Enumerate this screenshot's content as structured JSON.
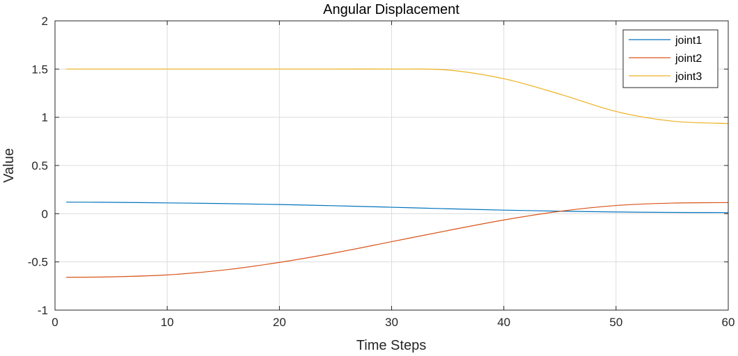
{
  "chart_data": {
    "type": "line",
    "title": "Angular Displacement",
    "xlabel": "Time Steps",
    "ylabel": "Value",
    "xlim": [
      0,
      60
    ],
    "ylim": [
      -1,
      2
    ],
    "xticks": [
      0,
      10,
      20,
      30,
      40,
      50,
      60
    ],
    "xtick_labels": [
      "0",
      "10",
      "20",
      "30",
      "40",
      "50",
      "60"
    ],
    "yticks": [
      -1,
      -0.5,
      0,
      0.5,
      1,
      1.5,
      2
    ],
    "ytick_labels": [
      "-1",
      "-0.5",
      "0",
      "0.5",
      "1",
      "1.5",
      "2"
    ],
    "grid": true,
    "legend_position": "top-right",
    "x": [
      1,
      5,
      10,
      15,
      20,
      25,
      30,
      35,
      40,
      45,
      50,
      55,
      60
    ],
    "series": [
      {
        "name": "joint1",
        "color": "#0072BD",
        "values": [
          0.12,
          0.118,
          0.112,
          0.105,
          0.095,
          0.082,
          0.067,
          0.051,
          0.037,
          0.026,
          0.018,
          0.013,
          0.012
        ]
      },
      {
        "name": "joint2",
        "color": "#D95319",
        "values": [
          -0.66,
          -0.655,
          -0.635,
          -0.585,
          -0.505,
          -0.405,
          -0.29,
          -0.175,
          -0.065,
          0.025,
          0.085,
          0.11,
          0.115
        ]
      },
      {
        "name": "joint3",
        "color": "#EDB120",
        "values": [
          1.5,
          1.5,
          1.5,
          1.5,
          1.5,
          1.5,
          1.5,
          1.49,
          1.4,
          1.24,
          1.06,
          0.96,
          0.935
        ]
      }
    ]
  }
}
